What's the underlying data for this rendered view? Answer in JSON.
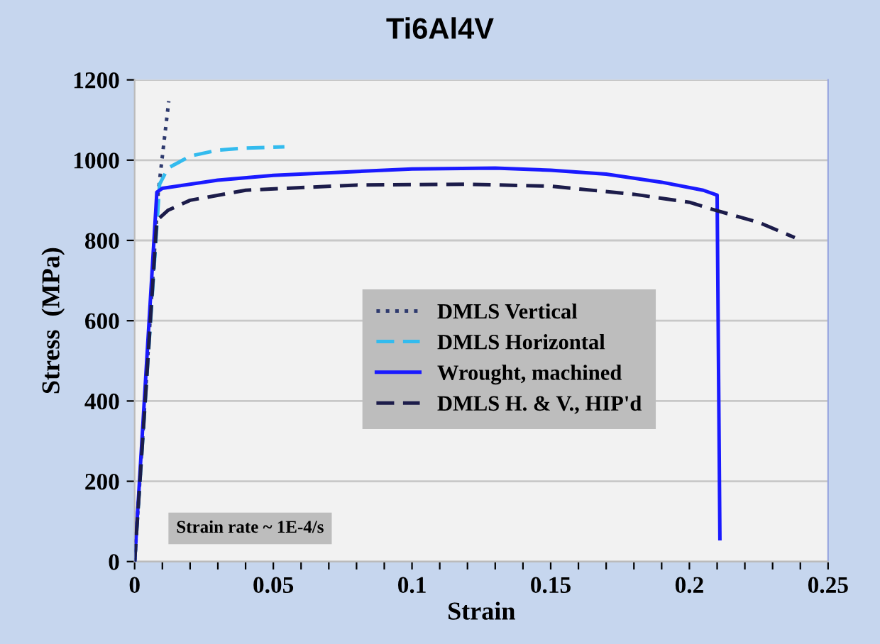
{
  "chart_data": {
    "type": "line",
    "title": "Ti6Al4V",
    "xlabel": "Strain",
    "ylabel": "Stress  (MPa)",
    "series": [
      {
        "name": "DMLS Vertical",
        "color": "#2e3a6e",
        "line_style": "dotted",
        "x": [
          0,
          0.004,
          0.0085,
          0.0105,
          0.0123
        ],
        "values": [
          0,
          430,
          920,
          1040,
          1147
        ]
      },
      {
        "name": "DMLS Horizontal",
        "color": "#33bbee",
        "line_style": "dashed",
        "x": [
          0,
          0.009,
          0.012,
          0.02,
          0.03,
          0.04,
          0.054
        ],
        "values": [
          0,
          940,
          980,
          1010,
          1025,
          1030,
          1033
        ]
      },
      {
        "name": "Wrought, machined",
        "color": "#1a1aff",
        "line_style": "solid",
        "x": [
          0,
          0.004,
          0.008,
          0.01,
          0.03,
          0.05,
          0.1,
          0.13,
          0.15,
          0.17,
          0.19,
          0.205,
          0.21,
          0.211
        ],
        "values": [
          0,
          460,
          920,
          930,
          950,
          962,
          978,
          980,
          975,
          965,
          945,
          925,
          913,
          57
        ]
      },
      {
        "name": "DMLS H. & V., HIP'd",
        "color": "#1c1c4a",
        "line_style": "dashed",
        "x": [
          0,
          0.004,
          0.008,
          0.012,
          0.02,
          0.04,
          0.08,
          0.12,
          0.15,
          0.18,
          0.2,
          0.21,
          0.225,
          0.238
        ],
        "values": [
          0,
          420,
          850,
          875,
          900,
          925,
          938,
          940,
          935,
          915,
          895,
          874,
          845,
          807
        ]
      }
    ],
    "xlim": [
      0,
      0.25
    ],
    "ylim": [
      0,
      1200
    ],
    "xticks": [
      0,
      {
        "value": 0.01,
        "label": null
      },
      {
        "value": 0.02,
        "label": null
      },
      {
        "value": 0.03,
        "label": null
      },
      {
        "value": 0.04,
        "label": null
      },
      0.05,
      {
        "value": 0.06,
        "label": null
      },
      {
        "value": 0.07,
        "label": null
      },
      {
        "value": 0.08,
        "label": null
      },
      {
        "value": 0.09,
        "label": null
      },
      0.1,
      {
        "value": 0.11,
        "label": null
      },
      {
        "value": 0.12,
        "label": null
      },
      {
        "value": 0.13,
        "label": null
      },
      {
        "value": 0.14,
        "label": null
      },
      0.15,
      {
        "value": 0.16,
        "label": null
      },
      {
        "value": 0.17,
        "label": null
      },
      {
        "value": 0.18,
        "label": null
      },
      {
        "value": 0.19,
        "label": null
      },
      0.2,
      {
        "value": 0.21,
        "label": null
      },
      {
        "value": 0.22,
        "label": null
      },
      {
        "value": 0.23,
        "label": null
      },
      {
        "value": 0.24,
        "label": null
      },
      0.25
    ],
    "yticks": [
      0,
      200,
      400,
      600,
      800,
      1000,
      1200
    ],
    "grid": "y",
    "legend": "center",
    "annotations": [
      "Strain rate ~ 1E-4/s"
    ]
  }
}
